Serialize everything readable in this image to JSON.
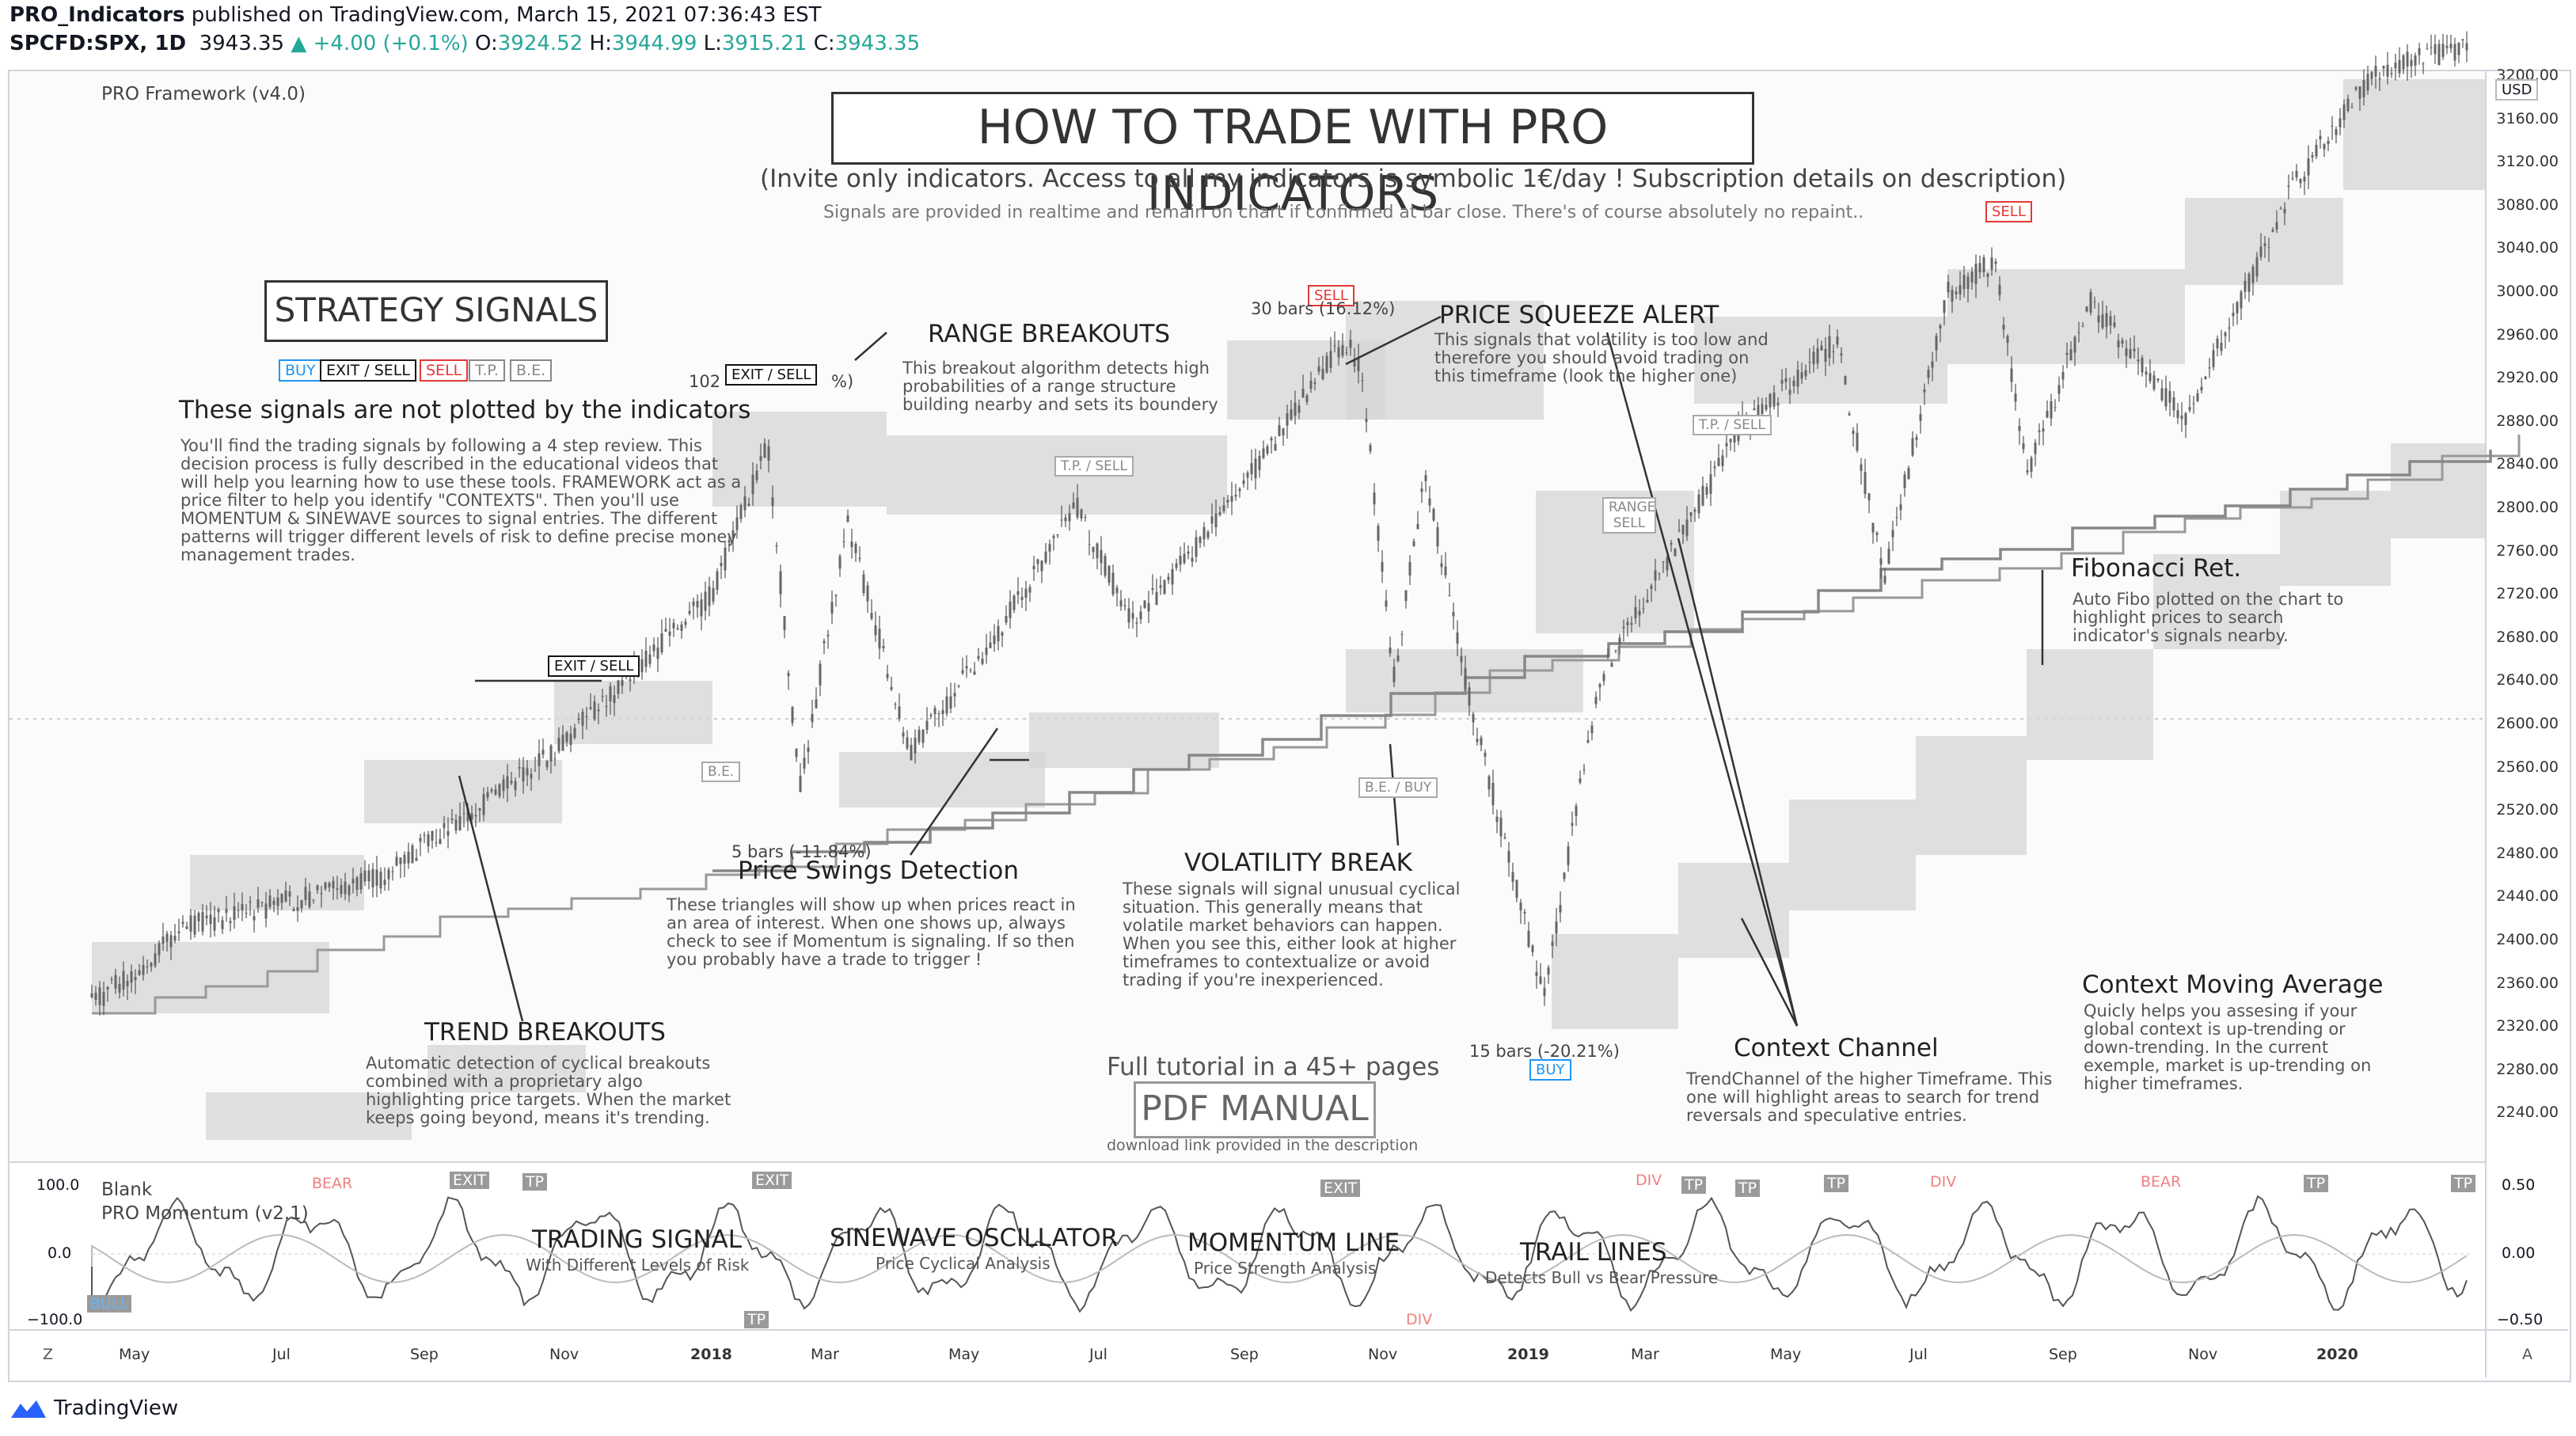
{
  "header": {
    "author": "PRO_Indicators",
    "published_text": " published on TradingView.com, March 15, 2021 07:36:43 EST",
    "symbol": "SPCFD:SPX, 1D",
    "last": "3943.35",
    "change": "▲ +4.00 (+0.1%)",
    "o_label": "O:",
    "o_value": "3924.52",
    "h_label": "H:",
    "h_value": "3944.99",
    "l_label": "L:",
    "l_value": "3915.21",
    "c_label": "C:",
    "c_value": "3943.35"
  },
  "main_pane": {
    "indicator_name": "PRO Framework (v4.0)",
    "currency": "USD",
    "y_ticks": [
      "3200.00",
      "3160.00",
      "3120.00",
      "3080.00",
      "3040.00",
      "3000.00",
      "2960.00",
      "2920.00",
      "2880.00",
      "2840.00",
      "2800.00",
      "2760.00",
      "2720.00",
      "2680.00",
      "2640.00",
      "2600.00",
      "2560.00",
      "2520.00",
      "2480.00",
      "2440.00",
      "2400.00",
      "2360.00",
      "2320.00",
      "2280.00",
      "2240.00"
    ]
  },
  "sub_pane": {
    "name1": "Blank",
    "name2": "PRO Momentum (v2.1)",
    "y_left": [
      "100.0",
      "0.0",
      "−100.0"
    ],
    "y_right": [
      "0.50",
      "0.00",
      "−0.50"
    ]
  },
  "x_ticks": [
    "May",
    "Jul",
    "Sep",
    "Nov",
    "2018",
    "Mar",
    "May",
    "Jul",
    "Sep",
    "Nov",
    "2019",
    "Mar",
    "May",
    "Jul",
    "Sep",
    "Nov",
    "2020"
  ],
  "axis_buttons": {
    "left": "Z",
    "right": "A"
  },
  "annotations": {
    "main_title": "HOW TO TRADE WITH PRO INDICATORS",
    "subtitle": "(Invite only indicators. Access to all my indicators is symbolic 1€/day ! Subscription details on description)",
    "subtitle2": "Signals are provided in realtime and remain on chart if confirmed at bar close. There's of course absolutely no repaint..",
    "strategy_title": "STRATEGY SIGNALS",
    "tags": [
      "BUY",
      "EXIT / SELL",
      "SELL",
      "T.P.",
      "B.E."
    ],
    "not_plotted": "These signals are not plotted by the indicators",
    "strategy_text": "You'll find the trading signals by following a 4 step review. This decision process is fully described in the educational videos that will help you learning how to use these tools. FRAMEWORK act as a price filter to help you identify \"CONTEXTS\". Then you'll use MOMENTUM & SINEWAVE sources to signal entries. The different patterns will trigger different levels of risk to define precise money management trades.",
    "range_title": "RANGE BREAKOUTS",
    "range_text": "This breakout algorithm detects high probabilities of a range structure building nearby and sets its boundery",
    "squeeze_title": "PRICE SQUEEZE ALERT",
    "squeeze_text": "This signals that volatility is too low and therefore you should avoid trading on this timeframe (look the higher one)",
    "swings_title": "Price Swings Detection",
    "swings_text": "These triangles will show up when prices react in an area of interest. When one shows up, always check to see if Momentum is signaling. If so then you probably have a trade to trigger !",
    "volatility_title": "VOLATILITY BREAK",
    "volatility_text": "These signals will signal unusual cyclical situation. This generally means that volatile market behaviors can happen. When you see this, either look at higher timeframes to contextualize or avoid trading if you're inexperienced.",
    "trend_title": "TREND BREAKOUTS",
    "trend_text": "Automatic detection of cyclical breakouts combined with a proprietary algo highlighting price targets. When the market keeps going beyond, means it's trending.",
    "tutorial": "Full tutorial in a 45+ pages",
    "pdf": "PDF MANUAL",
    "download": "download link provided in the description",
    "context_channel_title": "Context Channel",
    "context_channel_text": "TrendChannel of the higher Timeframe. This one will highlight areas to search for trend reversals and speculative entries.",
    "fibo_title": "Fibonacci Ret.",
    "fibo_text": "Auto Fibo plotted on the chart to highlight prices to search indicator's signals nearby.",
    "cma_title": "Context Moving Average",
    "cma_text": "Quicly helps you assesing if your global context is up-trending or down-trending. In the current exemple, market is up-trending on higher timeframes.",
    "trading_signal": "TRADING SIGNAL",
    "trading_signal_sub": "With Different Levels of Risk",
    "sinewave": "SINEWAVE OSCILLATOR",
    "sinewave_sub": "Price Cyclical Analysis",
    "momentum": "MOMENTUM LINE",
    "momentum_sub": "Price Strength Analysis",
    "trail": "TRAIL LINES",
    "trail_sub": "Detects Bull vs Bear Pressure"
  },
  "chart_labels": {
    "exit_sell": "EXIT / SELL",
    "sell": "SELL",
    "buy": "BUY",
    "tp_sell": "T.P. / SELL",
    "be": "B.E.",
    "be_buy": "B.E. / BUY",
    "range_sell": "RANGE SELL",
    "bars_102": "102",
    "bars_102_pct": "%)",
    "bars_30": "30 bars (16.12%)",
    "bars_5": "5 bars (-11.84%)",
    "bars_15": "15 bars (-20.21%)",
    "osc_tags": [
      "BEAR",
      "EXIT",
      "TP",
      "EXIT",
      "TP",
      "EXIT",
      "DIV",
      "TP",
      "TP",
      "DIV",
      "TP",
      "BEAR",
      "TP",
      "TP",
      "DIV",
      "BULL"
    ]
  },
  "footer": {
    "brand": "TradingView"
  },
  "colors": {
    "up": "#26a69a",
    "sell_red": "#e53935",
    "buy_blue": "#2196f3",
    "band_gray": "#d6d6d6"
  }
}
